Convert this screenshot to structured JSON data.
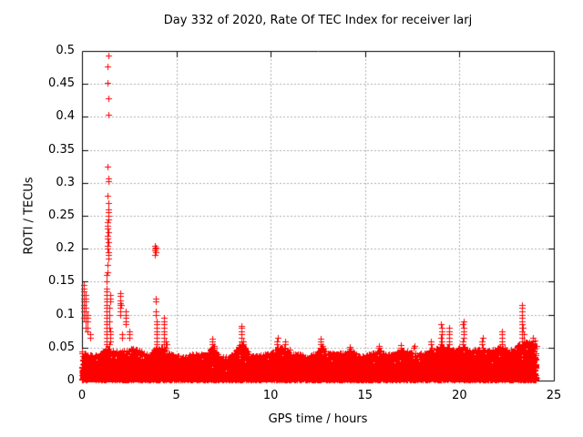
{
  "chart_data": {
    "type": "scatter",
    "title": "Day 332 of 2020, Rate Of TEC Index for receiver larj",
    "xlabel": "GPS time / hours",
    "ylabel": "ROTI / TECUs",
    "xlim": [
      0,
      25
    ],
    "ylim": [
      0,
      0.5
    ],
    "xticks": [
      0,
      5,
      10,
      15,
      20,
      25
    ],
    "yticks": [
      0,
      0.05,
      0.1,
      0.15,
      0.2,
      0.25,
      0.3,
      0.35,
      0.4,
      0.45,
      0.5
    ],
    "xtick_labels": [
      "0",
      "5",
      "10",
      "15",
      "20",
      "25"
    ],
    "ytick_labels": [
      "0",
      "0.05",
      "0.1",
      "0.15",
      "0.2",
      "0.25",
      "0.3",
      "0.35",
      "0.4",
      "0.45",
      "0.5"
    ],
    "grid": true,
    "legend": "none",
    "marker": "plus",
    "marker_color": "#ff0000",
    "grid_color": "#b0b0b0",
    "axis_color": "#000000",
    "background": "#ffffff",
    "data_x_range": [
      0,
      24.07
    ],
    "baseline_band": {
      "y_min": 0.002,
      "step_hours": 0.012,
      "points_per_step": 5,
      "bias_exponent": 1.9,
      "seed": 1332,
      "envelope": [
        [
          0,
          0.044
        ],
        [
          0.3,
          0.04
        ],
        [
          0.7,
          0.038
        ],
        [
          1.0,
          0.042
        ],
        [
          1.3,
          0.05
        ],
        [
          1.6,
          0.046
        ],
        [
          2.0,
          0.044
        ],
        [
          2.4,
          0.046
        ],
        [
          2.8,
          0.05
        ],
        [
          3.2,
          0.042
        ],
        [
          3.6,
          0.04
        ],
        [
          3.9,
          0.05
        ],
        [
          4.3,
          0.05
        ],
        [
          4.6,
          0.042
        ],
        [
          5.0,
          0.038
        ],
        [
          5.4,
          0.036
        ],
        [
          5.8,
          0.04
        ],
        [
          6.2,
          0.042
        ],
        [
          6.6,
          0.038
        ],
        [
          6.9,
          0.052
        ],
        [
          7.2,
          0.04
        ],
        [
          7.6,
          0.036
        ],
        [
          8.0,
          0.04
        ],
        [
          8.5,
          0.06
        ],
        [
          8.8,
          0.042
        ],
        [
          9.2,
          0.038
        ],
        [
          9.6,
          0.04
        ],
        [
          10.0,
          0.042
        ],
        [
          10.4,
          0.05
        ],
        [
          10.8,
          0.052
        ],
        [
          11.2,
          0.042
        ],
        [
          11.6,
          0.04
        ],
        [
          12.0,
          0.038
        ],
        [
          12.4,
          0.042
        ],
        [
          12.7,
          0.052
        ],
        [
          13.0,
          0.044
        ],
        [
          13.4,
          0.04
        ],
        [
          13.8,
          0.042
        ],
        [
          14.2,
          0.046
        ],
        [
          14.6,
          0.038
        ],
        [
          15.0,
          0.038
        ],
        [
          15.4,
          0.042
        ],
        [
          15.8,
          0.046
        ],
        [
          16.2,
          0.04
        ],
        [
          16.6,
          0.042
        ],
        [
          17.0,
          0.046
        ],
        [
          17.4,
          0.044
        ],
        [
          17.8,
          0.04
        ],
        [
          18.2,
          0.044
        ],
        [
          18.6,
          0.048
        ],
        [
          19.0,
          0.052
        ],
        [
          19.4,
          0.05
        ],
        [
          19.8,
          0.046
        ],
        [
          20.2,
          0.054
        ],
        [
          20.6,
          0.044
        ],
        [
          21.0,
          0.05
        ],
        [
          21.4,
          0.046
        ],
        [
          21.8,
          0.048
        ],
        [
          22.2,
          0.054
        ],
        [
          22.6,
          0.046
        ],
        [
          23.0,
          0.052
        ],
        [
          23.4,
          0.058
        ],
        [
          23.7,
          0.058
        ],
        [
          24.0,
          0.062
        ],
        [
          24.07,
          0.06
        ]
      ]
    },
    "spike_columns": [
      {
        "x": 0.1,
        "ys": [
          0.095,
          0.105,
          0.11,
          0.115,
          0.12,
          0.125,
          0.13,
          0.135,
          0.14,
          0.145
        ]
      },
      {
        "x": 0.18,
        "ys": [
          0.08,
          0.09,
          0.095,
          0.1,
          0.105,
          0.11,
          0.12,
          0.125,
          0.13
        ]
      },
      {
        "x": 0.28,
        "ys": [
          0.075,
          0.08,
          0.09,
          0.095,
          0.1
        ]
      },
      {
        "x": 0.45,
        "ys": [
          0.065,
          0.07
        ]
      },
      {
        "x": 1.3,
        "ys": [
          0.055,
          0.06,
          0.065,
          0.07,
          0.075,
          0.08,
          0.085,
          0.09,
          0.095,
          0.1,
          0.105,
          0.11,
          0.115,
          0.12,
          0.125,
          0.13,
          0.135,
          0.14,
          0.15,
          0.16
        ]
      },
      {
        "x": 1.38,
        "ys": [
          0.165,
          0.175,
          0.185,
          0.19,
          0.195,
          0.2,
          0.205,
          0.21,
          0.215,
          0.22,
          0.225,
          0.23,
          0.235,
          0.24,
          0.245,
          0.25,
          0.255,
          0.26,
          0.27,
          0.28,
          0.302,
          0.306,
          0.325,
          0.404,
          0.428,
          0.452,
          0.477,
          0.493
        ]
      },
      {
        "x": 1.47,
        "ys": [
          0.055,
          0.06,
          0.065,
          0.07,
          0.075,
          0.08,
          0.09,
          0.1,
          0.11,
          0.12,
          0.125,
          0.13
        ]
      },
      {
        "x": 2.02,
        "ys": [
          0.1,
          0.105,
          0.11,
          0.115,
          0.118,
          0.122,
          0.128,
          0.133
        ]
      },
      {
        "x": 2.1,
        "ys": [
          0.065,
          0.07,
          0.115
        ]
      },
      {
        "x": 2.3,
        "ys": [
          0.085,
          0.09,
          0.095,
          0.1,
          0.105
        ]
      },
      {
        "x": 2.5,
        "ys": [
          0.065,
          0.07,
          0.075
        ]
      },
      {
        "x": 3.88,
        "ys": [
          0.19,
          0.195,
          0.198,
          0.2,
          0.202,
          0.205
        ]
      },
      {
        "x": 3.92,
        "ys": [
          0.1,
          0.105,
          0.12,
          0.125
        ]
      },
      {
        "x": 3.95,
        "ys": [
          0.05,
          0.055,
          0.06,
          0.065,
          0.07,
          0.075,
          0.08,
          0.085,
          0.09
        ]
      },
      {
        "x": 4.35,
        "ys": [
          0.05,
          0.055,
          0.06,
          0.065,
          0.07,
          0.075,
          0.08,
          0.085,
          0.09,
          0.095
        ]
      },
      {
        "x": 4.45,
        "ys": [
          0.05,
          0.055,
          0.06
        ]
      },
      {
        "x": 6.9,
        "ys": [
          0.05,
          0.055,
          0.06,
          0.063
        ]
      },
      {
        "x": 7.0,
        "ys": [
          0.05,
          0.052
        ]
      },
      {
        "x": 8.45,
        "ys": [
          0.05,
          0.055,
          0.06,
          0.065,
          0.07,
          0.075,
          0.08,
          0.083
        ]
      },
      {
        "x": 8.55,
        "ys": [
          0.05,
          0.055,
          0.06
        ]
      },
      {
        "x": 10.35,
        "ys": [
          0.05,
          0.055,
          0.06,
          0.065
        ]
      },
      {
        "x": 10.75,
        "ys": [
          0.05,
          0.055,
          0.06
        ]
      },
      {
        "x": 12.65,
        "ys": [
          0.05,
          0.055,
          0.06,
          0.063
        ]
      },
      {
        "x": 12.75,
        "ys": [
          0.05,
          0.053
        ]
      },
      {
        "x": 14.2,
        "ys": [
          0.048,
          0.051
        ]
      },
      {
        "x": 15.75,
        "ys": [
          0.05,
          0.052
        ]
      },
      {
        "x": 16.9,
        "ys": [
          0.05,
          0.054
        ]
      },
      {
        "x": 17.6,
        "ys": [
          0.05,
          0.052
        ]
      },
      {
        "x": 18.5,
        "ys": [
          0.05,
          0.055,
          0.06
        ]
      },
      {
        "x": 19.05,
        "ys": [
          0.05,
          0.055,
          0.06,
          0.065,
          0.07,
          0.075,
          0.08,
          0.085
        ]
      },
      {
        "x": 19.45,
        "ys": [
          0.05,
          0.055,
          0.06,
          0.065,
          0.07,
          0.075,
          0.08
        ]
      },
      {
        "x": 20.2,
        "ys": [
          0.05,
          0.055,
          0.06,
          0.065,
          0.07,
          0.075,
          0.08,
          0.085,
          0.09
        ]
      },
      {
        "x": 21.2,
        "ys": [
          0.05,
          0.055,
          0.06,
          0.065
        ]
      },
      {
        "x": 22.25,
        "ys": [
          0.05,
          0.055,
          0.06,
          0.065,
          0.07,
          0.075
        ]
      },
      {
        "x": 23.3,
        "ys": [
          0.05,
          0.055,
          0.06,
          0.065,
          0.07,
          0.075,
          0.08,
          0.085,
          0.09,
          0.095,
          0.1,
          0.105,
          0.11,
          0.115
        ]
      },
      {
        "x": 23.38,
        "ys": [
          0.05,
          0.055,
          0.06,
          0.07,
          0.08
        ]
      },
      {
        "x": 23.9,
        "ys": [
          0.05,
          0.055,
          0.06,
          0.065
        ]
      }
    ]
  }
}
